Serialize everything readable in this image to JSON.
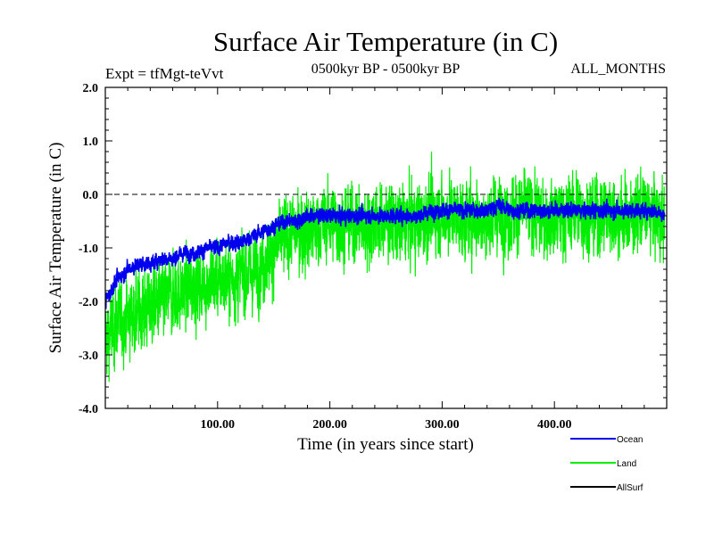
{
  "chart_data": {
    "type": "line",
    "title": "Surface Air Temperature (in C)",
    "subtitle_left": "Expt = tfMgt-teVvt",
    "subtitle_center": "0500kyr BP - 0500kyr BP",
    "subtitle_right": "ALL_MONTHS",
    "xlabel": "Time (in years since start)",
    "ylabel": "Surface Air Temperature (in C)",
    "xlim": [
      0,
      500
    ],
    "ylim": [
      -4.0,
      2.0
    ],
    "xticks": [
      100,
      200,
      300,
      400
    ],
    "xtick_labels": [
      "100.00",
      "200.00",
      "300.00",
      "400.00"
    ],
    "yticks": [
      -4.0,
      -3.0,
      -2.0,
      -1.0,
      0.0,
      1.0,
      2.0
    ],
    "ytick_labels": [
      "-4.0",
      "-3.0",
      "-2.0",
      "-1.0",
      "0.0",
      "1.0",
      "2.0"
    ],
    "reference_line_y": 0.0,
    "legend_placement": "bottom-right",
    "series": [
      {
        "name": "Land",
        "color": "#00ee00",
        "x": [
          0,
          10,
          20,
          30,
          40,
          50,
          60,
          70,
          80,
          90,
          100,
          110,
          120,
          130,
          140,
          150,
          160,
          170,
          180,
          190,
          200,
          210,
          220,
          230,
          240,
          250,
          260,
          270,
          280,
          290,
          300,
          310,
          320,
          330,
          340,
          350,
          360,
          370,
          380,
          390,
          400,
          410,
          420,
          430,
          440,
          450,
          460,
          470,
          480,
          490,
          498
        ],
        "values": [
          -2.7,
          -2.4,
          -2.3,
          -2.2,
          -2.1,
          -2.0,
          -1.9,
          -1.8,
          -1.7,
          -1.7,
          -1.6,
          -1.6,
          -1.5,
          -1.5,
          -1.3,
          -1.0,
          -0.8,
          -0.7,
          -0.7,
          -0.6,
          -0.5,
          -0.6,
          -0.5,
          -0.6,
          -0.5,
          -0.5,
          -0.6,
          -0.5,
          -0.5,
          -0.4,
          -0.4,
          -0.3,
          -0.5,
          -0.4,
          -0.5,
          -0.3,
          -0.4,
          -0.3,
          -0.3,
          -0.5,
          -0.4,
          -0.4,
          -0.3,
          -0.4,
          -0.4,
          -0.3,
          -0.5,
          -0.4,
          -0.3,
          -0.4,
          -0.5
        ],
        "spread": 1.0
      },
      {
        "name": "Ocean",
        "color": "#0000ee",
        "x": [
          0,
          10,
          20,
          30,
          40,
          50,
          60,
          70,
          80,
          90,
          100,
          110,
          120,
          130,
          140,
          150,
          160,
          170,
          180,
          190,
          200,
          210,
          220,
          230,
          240,
          250,
          260,
          270,
          280,
          290,
          300,
          310,
          320,
          330,
          340,
          350,
          360,
          370,
          380,
          390,
          400,
          410,
          420,
          430,
          440,
          450,
          460,
          470,
          480,
          490,
          498
        ],
        "values": [
          -2.0,
          -1.6,
          -1.4,
          -1.3,
          -1.3,
          -1.2,
          -1.2,
          -1.1,
          -1.1,
          -1.0,
          -1.0,
          -0.9,
          -0.9,
          -0.8,
          -0.7,
          -0.6,
          -0.5,
          -0.5,
          -0.4,
          -0.4,
          -0.4,
          -0.4,
          -0.4,
          -0.4,
          -0.4,
          -0.4,
          -0.4,
          -0.4,
          -0.4,
          -0.3,
          -0.3,
          -0.3,
          -0.3,
          -0.3,
          -0.3,
          -0.2,
          -0.3,
          -0.3,
          -0.3,
          -0.3,
          -0.3,
          -0.3,
          -0.3,
          -0.3,
          -0.3,
          -0.3,
          -0.3,
          -0.3,
          -0.3,
          -0.3,
          -0.4
        ],
        "spread": 0.2
      },
      {
        "name": "AllSurf",
        "color": "#000000",
        "x": [],
        "values": []
      }
    ]
  }
}
